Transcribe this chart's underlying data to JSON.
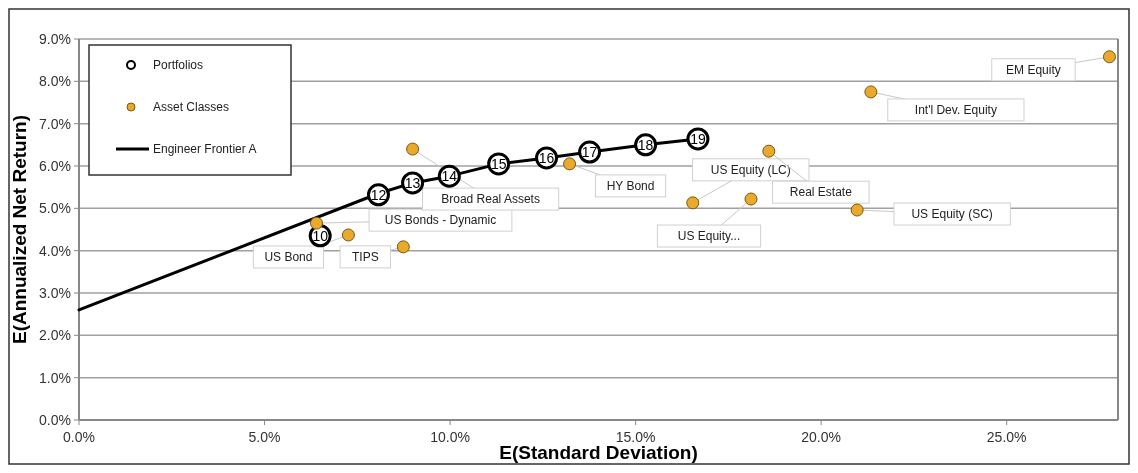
{
  "chart_data": {
    "type": "scatter",
    "xlabel": "E(Standard Deviation)",
    "ylabel": "E(Annualized Net Return)",
    "xlim": [
      0,
      28
    ],
    "ylim": [
      0,
      9
    ],
    "xticks": [
      {
        "value": 0,
        "label": "0.0%"
      },
      {
        "value": 5,
        "label": "5.0%"
      },
      {
        "value": 10,
        "label": "10.0%"
      },
      {
        "value": 15,
        "label": "15.0%"
      },
      {
        "value": 20,
        "label": "20.0%"
      },
      {
        "value": 25,
        "label": "25.0%"
      }
    ],
    "yticks": [
      {
        "value": 0,
        "label": "0.0%"
      },
      {
        "value": 1,
        "label": "1.0%"
      },
      {
        "value": 2,
        "label": "2.0%"
      },
      {
        "value": 3,
        "label": "3.0%"
      },
      {
        "value": 4,
        "label": "4.0%"
      },
      {
        "value": 5,
        "label": "5.0%"
      },
      {
        "value": 6,
        "label": "6.0%"
      },
      {
        "value": 7,
        "label": "7.0%"
      },
      {
        "value": 8,
        "label": "8.0%"
      },
      {
        "value": 9,
        "label": "9.0%"
      }
    ],
    "grid": "y",
    "legend": "top left",
    "marker": "circle",
    "series": [
      {
        "name": "Portfolios",
        "color": "#000000",
        "x": [
          6.5,
          8.07,
          8.99,
          9.98,
          11.31,
          12.6,
          13.76,
          15.27,
          16.68
        ],
        "values": [
          4.35,
          5.32,
          5.6,
          5.76,
          6.05,
          6.19,
          6.33,
          6.5,
          6.64
        ]
      },
      {
        "name": "Asset Classes",
        "color": "#e8a92c",
        "x": [
          6.4,
          7.26,
          8.74,
          8.99,
          13.22,
          16.54,
          18.59,
          18.11,
          20.97,
          21.34,
          27.77
        ],
        "values": [
          4.65,
          4.37,
          4.09,
          6.4,
          6.05,
          5.13,
          6.35,
          5.22,
          4.96,
          7.75,
          8.58
        ]
      },
      {
        "name": "Engineer Frontier A",
        "type": "line",
        "color": "#000000",
        "line_style": "solid",
        "marker": "none",
        "x": [
          0,
          8.07,
          8.99,
          9.98,
          11.31,
          12.6,
          13.76,
          15.27,
          16.68
        ],
        "values": [
          2.6,
          5.35,
          5.6,
          5.76,
          6.05,
          6.19,
          6.33,
          6.5,
          6.64
        ]
      }
    ],
    "annotations": [
      {
        "text": "US Bonds - Dynamic",
        "x": 6.4,
        "y": 4.65
      },
      {
        "text": "US Bond",
        "x": 7.26,
        "y": 4.37
      },
      {
        "text": "TIPS",
        "x": 8.74,
        "y": 4.09
      },
      {
        "text": "Broad Real Assets",
        "x": 8.99,
        "y": 6.4
      },
      {
        "text": "HY Bond",
        "x": 13.22,
        "y": 6.05
      },
      {
        "text": "US Equity (LC)",
        "x": 16.54,
        "y": 5.13
      },
      {
        "text": "Real Estate",
        "x": 18.59,
        "y": 6.35
      },
      {
        "text": "US Equity...",
        "x": 18.11,
        "y": 5.22
      },
      {
        "text": "US Equity (SC)",
        "x": 20.97,
        "y": 4.96
      },
      {
        "text": "Int'l Dev. Equity",
        "x": 21.34,
        "y": 7.75
      },
      {
        "text": "EM Equity",
        "x": 27.77,
        "y": 8.58
      },
      {
        "text": "10",
        "x": 6.5,
        "y": 4.35
      },
      {
        "text": "12",
        "x": 8.07,
        "y": 5.32
      },
      {
        "text": "13",
        "x": 8.99,
        "y": 5.6
      },
      {
        "text": "14",
        "x": 9.98,
        "y": 5.76
      },
      {
        "text": "15",
        "x": 11.31,
        "y": 6.05
      },
      {
        "text": "16",
        "x": 12.6,
        "y": 6.19
      },
      {
        "text": "17",
        "x": 13.76,
        "y": 6.33
      },
      {
        "text": "18",
        "x": 15.27,
        "y": 6.5
      },
      {
        "text": "19",
        "x": 16.68,
        "y": 6.64
      }
    ]
  }
}
